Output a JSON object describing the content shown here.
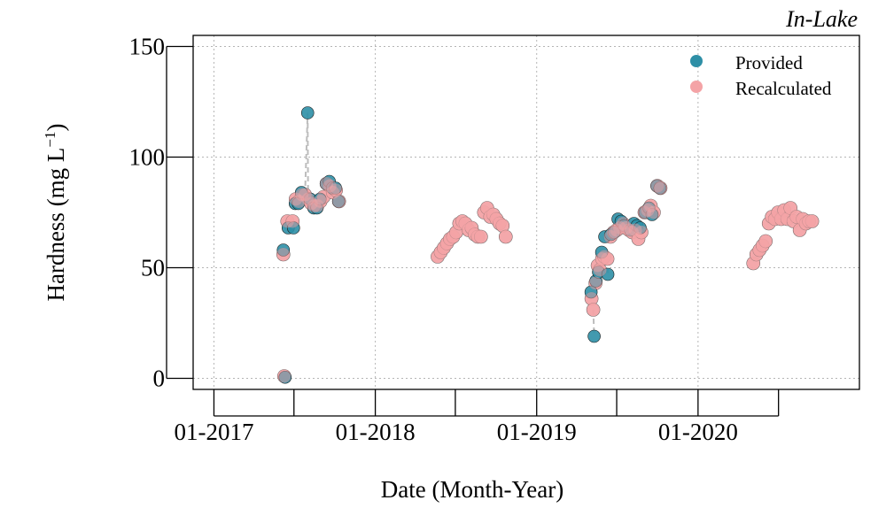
{
  "chart_data": {
    "type": "scatter",
    "panel_label": "In-Lake",
    "xlabel": "Date (Month-Year)",
    "ylabel": "Hardness (mg L",
    "ylabel_sup": "−1",
    "ylabel_close": ")",
    "xlim": [
      "2016-11-15",
      "2020-12-31"
    ],
    "ylim": [
      -5,
      155
    ],
    "x_ticks": [
      {
        "value": "2017-01-01",
        "label": "01-2017"
      },
      {
        "value": "2018-01-01",
        "label": "01-2018"
      },
      {
        "value": "2019-01-01",
        "label": "01-2019"
      },
      {
        "value": "2020-01-01",
        "label": "01-2020"
      }
    ],
    "x_minor_ticks": [
      "2017-07-01",
      "2018-07-01",
      "2019-07-01",
      "2020-07-01"
    ],
    "y_ticks": [
      0,
      50,
      100,
      150
    ],
    "grid": true,
    "legend_position": "top-right",
    "series": [
      {
        "name": "Recalculated",
        "color": "#F4A3A6",
        "points": [
          [
            "2017-06-07",
            56
          ],
          [
            "2017-06-09",
            1
          ],
          [
            "2017-06-16",
            71
          ],
          [
            "2017-06-28",
            71
          ],
          [
            "2017-07-05",
            81
          ],
          [
            "2017-07-12",
            80
          ],
          [
            "2017-07-19",
            83
          ],
          [
            "2017-07-26",
            83
          ],
          [
            "2017-08-02",
            81
          ],
          [
            "2017-08-09",
            79
          ],
          [
            "2017-08-16",
            78
          ],
          [
            "2017-08-23",
            78
          ],
          [
            "2017-08-30",
            80
          ],
          [
            "2017-09-06",
            82
          ],
          [
            "2017-09-13",
            88
          ],
          [
            "2017-09-20",
            87
          ],
          [
            "2017-09-27",
            84
          ],
          [
            "2017-10-04",
            85
          ],
          [
            "2017-10-11",
            80
          ],
          [
            "2018-05-22",
            55
          ],
          [
            "2018-05-29",
            57
          ],
          [
            "2018-06-05",
            59
          ],
          [
            "2018-06-12",
            61
          ],
          [
            "2018-06-19",
            63
          ],
          [
            "2018-06-26",
            64
          ],
          [
            "2018-07-03",
            66
          ],
          [
            "2018-07-10",
            70
          ],
          [
            "2018-07-17",
            71
          ],
          [
            "2018-07-24",
            70
          ],
          [
            "2018-07-31",
            67
          ],
          [
            "2018-08-07",
            68
          ],
          [
            "2018-08-14",
            65
          ],
          [
            "2018-08-21",
            64
          ],
          [
            "2018-08-28",
            64
          ],
          [
            "2018-09-04",
            75
          ],
          [
            "2018-09-11",
            77
          ],
          [
            "2018-09-18",
            73
          ],
          [
            "2018-09-25",
            74
          ],
          [
            "2018-10-02",
            72
          ],
          [
            "2018-10-09",
            70
          ],
          [
            "2018-10-16",
            69
          ],
          [
            "2018-10-23",
            64
          ],
          [
            "2019-05-05",
            36
          ],
          [
            "2019-05-09",
            31
          ],
          [
            "2019-05-14",
            43
          ],
          [
            "2019-05-19",
            51
          ],
          [
            "2019-05-24",
            49
          ],
          [
            "2019-05-29",
            54
          ],
          [
            "2019-06-03",
            55
          ],
          [
            "2019-06-10",
            54
          ],
          [
            "2019-06-17",
            64
          ],
          [
            "2019-06-24",
            66
          ],
          [
            "2019-07-01",
            67
          ],
          [
            "2019-07-08",
            68
          ],
          [
            "2019-07-15",
            70
          ],
          [
            "2019-07-22",
            68
          ],
          [
            "2019-07-29",
            67
          ],
          [
            "2019-08-05",
            66
          ],
          [
            "2019-08-12",
            67
          ],
          [
            "2019-08-19",
            63
          ],
          [
            "2019-08-26",
            66
          ],
          [
            "2019-09-02",
            75
          ],
          [
            "2019-09-09",
            76
          ],
          [
            "2019-09-16",
            78
          ],
          [
            "2019-09-23",
            75
          ],
          [
            "2019-10-01",
            87
          ],
          [
            "2019-10-08",
            86
          ],
          [
            "2020-05-05",
            52
          ],
          [
            "2020-05-12",
            56
          ],
          [
            "2020-05-19",
            58
          ],
          [
            "2020-05-26",
            60
          ],
          [
            "2020-06-02",
            62
          ],
          [
            "2020-06-09",
            70
          ],
          [
            "2020-06-16",
            73
          ],
          [
            "2020-06-23",
            72
          ],
          [
            "2020-06-30",
            75
          ],
          [
            "2020-07-07",
            72
          ],
          [
            "2020-07-14",
            76
          ],
          [
            "2020-07-21",
            72
          ],
          [
            "2020-07-28",
            77
          ],
          [
            "2020-08-04",
            71
          ],
          [
            "2020-08-11",
            73
          ],
          [
            "2020-08-18",
            67
          ],
          [
            "2020-08-25",
            72
          ],
          [
            "2020-09-01",
            70
          ],
          [
            "2020-09-08",
            71
          ],
          [
            "2020-09-15",
            71
          ]
        ]
      },
      {
        "name": "Provided",
        "color": "#2E8FA6",
        "points": [
          [
            "2017-06-07",
            58
          ],
          [
            "2017-06-11",
            0.5
          ],
          [
            "2017-06-18",
            68
          ],
          [
            "2017-06-30",
            68
          ],
          [
            "2017-07-04",
            79
          ],
          [
            "2017-07-11",
            79
          ],
          [
            "2017-07-18",
            84
          ],
          [
            "2017-08-01",
            120
          ],
          [
            "2017-08-07",
            81
          ],
          [
            "2017-08-15",
            77
          ],
          [
            "2017-08-22",
            77
          ],
          [
            "2017-08-29",
            81
          ],
          [
            "2017-09-12",
            88
          ],
          [
            "2017-09-19",
            89
          ],
          [
            "2017-09-26",
            86
          ],
          [
            "2017-10-03",
            86
          ],
          [
            "2017-10-10",
            80
          ],
          [
            "2019-05-04",
            39
          ],
          [
            "2019-05-11",
            19
          ],
          [
            "2019-05-15",
            44
          ],
          [
            "2019-05-21",
            48
          ],
          [
            "2019-05-28",
            57
          ],
          [
            "2019-06-04",
            64
          ],
          [
            "2019-06-11",
            47
          ],
          [
            "2019-06-18",
            65
          ],
          [
            "2019-06-25",
            66
          ],
          [
            "2019-07-04",
            72
          ],
          [
            "2019-07-11",
            71
          ],
          [
            "2019-07-18",
            69
          ],
          [
            "2019-08-01",
            67
          ],
          [
            "2019-08-09",
            70
          ],
          [
            "2019-08-16",
            69
          ],
          [
            "2019-08-23",
            68
          ],
          [
            "2019-09-03",
            75
          ],
          [
            "2019-09-12",
            77
          ],
          [
            "2019-09-19",
            74
          ],
          [
            "2019-09-30",
            87
          ],
          [
            "2019-10-07",
            86
          ]
        ]
      }
    ],
    "connectors": [
      [
        [
          "2017-06-07",
          58
        ],
        [
          "2017-06-07",
          56
        ]
      ],
      [
        [
          "2017-06-09",
          1
        ],
        [
          "2017-06-11",
          0.5
        ]
      ],
      [
        [
          "2017-06-16",
          71
        ],
        [
          "2017-06-18",
          68
        ]
      ],
      [
        [
          "2017-07-26",
          83
        ],
        [
          "2017-08-01",
          120
        ]
      ],
      [
        [
          "2017-08-02",
          81
        ],
        [
          "2017-08-01",
          120
        ]
      ],
      [
        [
          "2019-05-09",
          31
        ],
        [
          "2019-05-11",
          19
        ]
      ],
      [
        [
          "2019-05-05",
          36
        ],
        [
          "2019-05-04",
          39
        ]
      ],
      [
        [
          "2019-06-10",
          54
        ],
        [
          "2019-06-11",
          47
        ]
      ]
    ]
  }
}
